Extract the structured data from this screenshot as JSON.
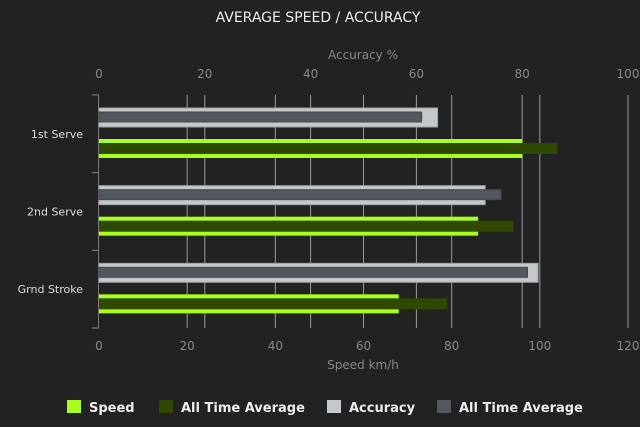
{
  "chart_data": {
    "type": "bar",
    "orientation": "horizontal",
    "title": "AVERAGE SPEED / ACCURACY",
    "categories": [
      "1st Serve",
      "2nd Serve",
      "Grnd Stroke"
    ],
    "x_bottom": {
      "label": "Speed km/h",
      "range": [
        0,
        120
      ],
      "ticks": [
        0,
        20,
        40,
        60,
        80,
        100,
        120
      ]
    },
    "x_top": {
      "label": "Accuracy %",
      "range": [
        0,
        100
      ],
      "ticks": [
        0,
        20,
        40,
        60,
        80,
        100
      ]
    },
    "grid": true,
    "legend_position": "bottom",
    "series": [
      {
        "name": "Speed",
        "axis": "speed",
        "color": "#a8ff1e",
        "values": [
          96,
          86,
          68
        ]
      },
      {
        "name": "All Time Average",
        "axis": "speed",
        "color": "#2f4a00",
        "values": [
          104,
          94,
          79
        ]
      },
      {
        "name": "Accuracy",
        "axis": "accuracy",
        "color": "#c4c8ca",
        "values": [
          64,
          73,
          83
        ]
      },
      {
        "name": "All Time Average",
        "axis": "accuracy",
        "color": "#535860",
        "values": [
          61,
          76,
          81
        ]
      }
    ]
  }
}
